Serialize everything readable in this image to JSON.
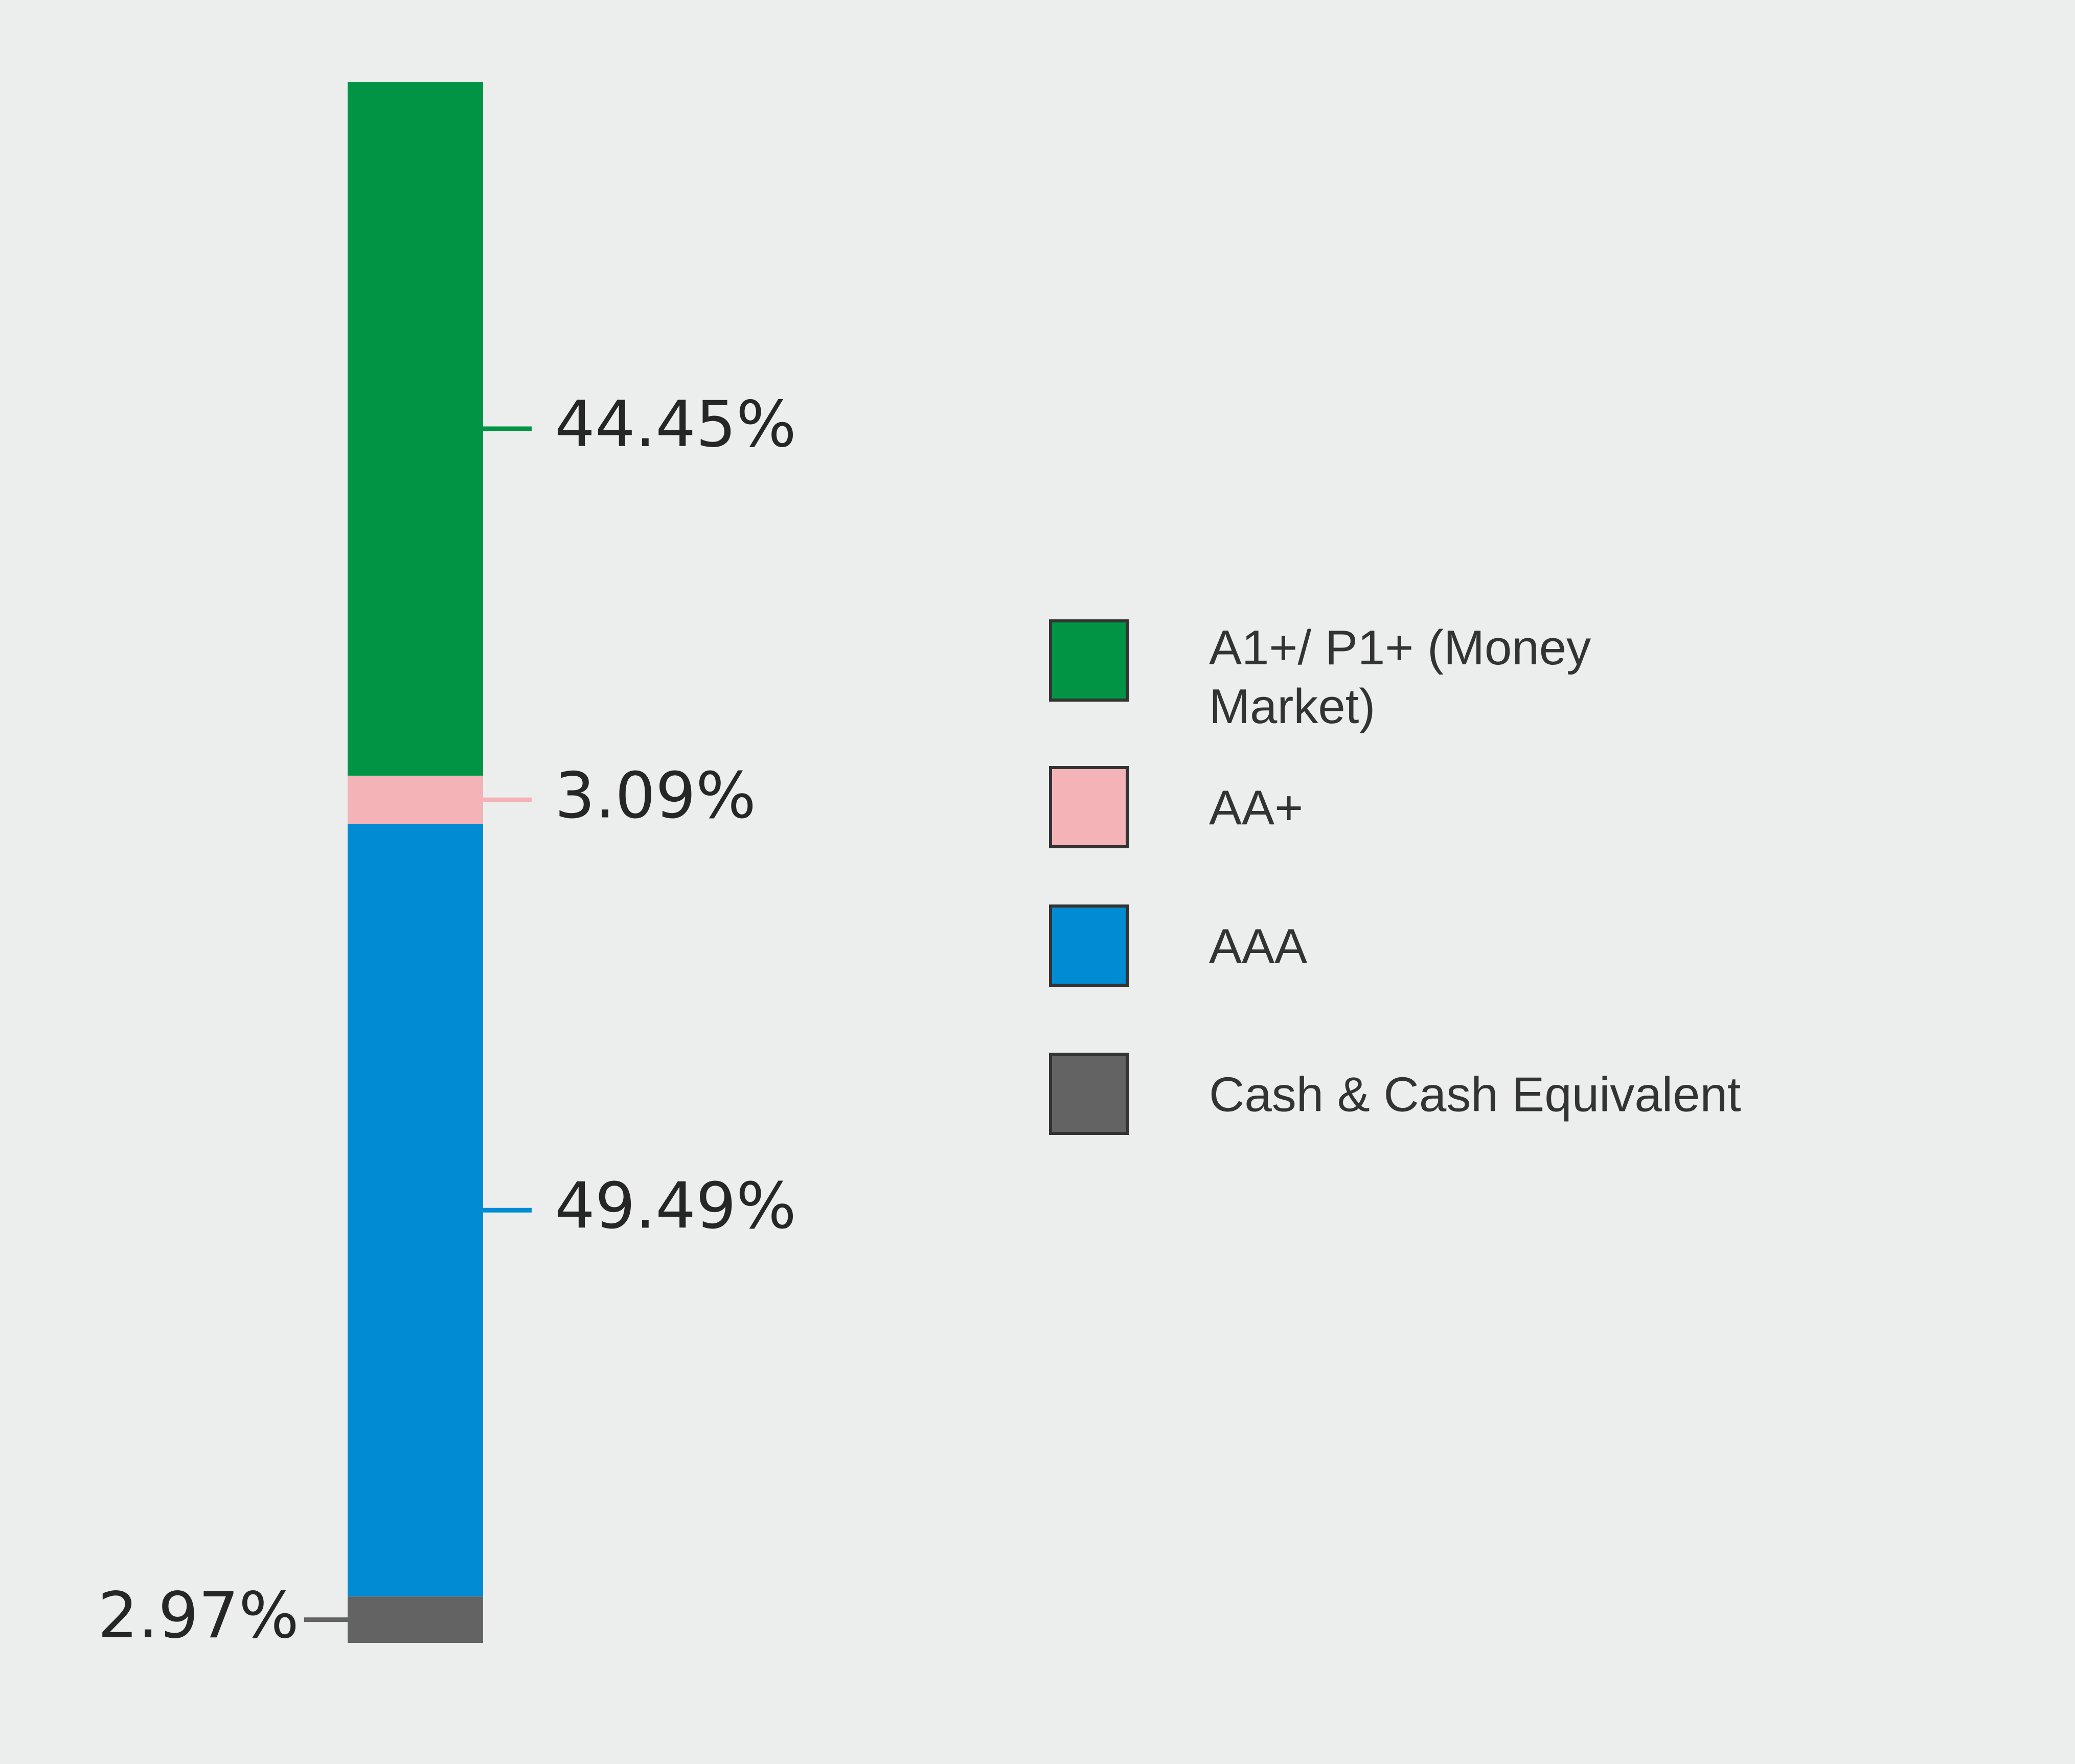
{
  "chart_data": {
    "type": "bar",
    "stacked": true,
    "orientation": "vertical",
    "title": "",
    "xlabel": "",
    "ylabel": "",
    "ylim": [
      0,
      100
    ],
    "grid": false,
    "legend_position": "right",
    "series": [
      {
        "name": "A1+/ P1+ (Money Market)",
        "value": 44.45,
        "label": "44.45%",
        "color": "#009444"
      },
      {
        "name": "AA+",
        "value": 3.09,
        "label": "3.09%",
        "color": "#f4b3b7"
      },
      {
        "name": "AAA",
        "value": 49.49,
        "label": "49.49%",
        "color": "#008bd2"
      },
      {
        "name": "Cash & Cash Equivalent",
        "value": 2.97,
        "label": "2.97%",
        "color": "#636363"
      }
    ]
  },
  "legend": {
    "items": [
      {
        "lines": [
          "A1+/ P1+ (Money",
          "Market)"
        ],
        "color": "#009444"
      },
      {
        "lines": [
          "AA+"
        ],
        "color": "#f4b3b7"
      },
      {
        "lines": [
          "AAA"
        ],
        "color": "#008bd2"
      },
      {
        "lines": [
          "Cash & Cash Equivalent"
        ],
        "color": "#636363"
      }
    ]
  }
}
